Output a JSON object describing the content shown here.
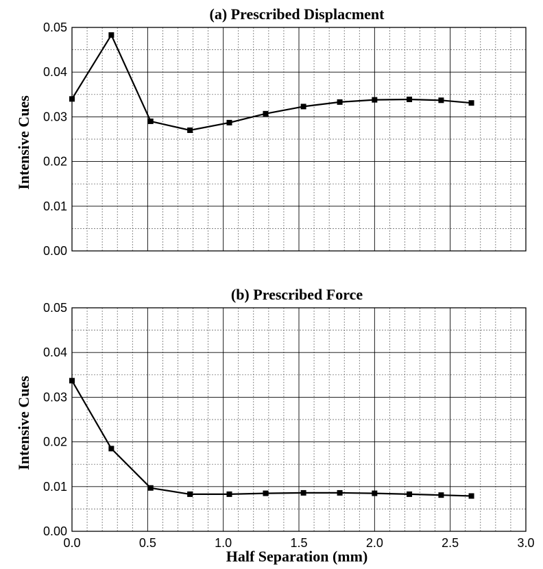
{
  "chart_data": [
    {
      "type": "line",
      "title": "(a) Prescribed Displacment",
      "ylabel": "Intensive Cues",
      "xlabel": "",
      "xlim": [
        0,
        3.0
      ],
      "ylim": [
        0,
        0.05
      ],
      "xticks": [
        "0.0",
        "0.5",
        "1.0",
        "1.5",
        "2.0",
        "2.5",
        "3.0"
      ],
      "yticks": [
        "0.00",
        "0.01",
        "0.02",
        "0.03",
        "0.04",
        "0.05"
      ],
      "show_xtick_labels": false,
      "grid": true,
      "series": [
        {
          "x": [
            0.0,
            0.26,
            0.52,
            0.78,
            1.04,
            1.28,
            1.53,
            1.77,
            2.0,
            2.23,
            2.44,
            2.64
          ],
          "y": [
            0.034,
            0.0483,
            0.029,
            0.027,
            0.0287,
            0.0307,
            0.0323,
            0.0333,
            0.0338,
            0.0339,
            0.0337,
            0.0331
          ]
        }
      ]
    },
    {
      "type": "line",
      "title": "(b) Prescribed Force",
      "ylabel": "Intensive Cues",
      "xlabel": "Half Separation (mm)",
      "xlim": [
        0,
        3.0
      ],
      "ylim": [
        0,
        0.05
      ],
      "xticks": [
        "0.0",
        "0.5",
        "1.0",
        "1.5",
        "2.0",
        "2.5",
        "3.0"
      ],
      "yticks": [
        "0.00",
        "0.01",
        "0.02",
        "0.03",
        "0.04",
        "0.05"
      ],
      "show_xtick_labels": true,
      "grid": true,
      "series": [
        {
          "x": [
            0.0,
            0.26,
            0.52,
            0.78,
            1.04,
            1.28,
            1.53,
            1.77,
            2.0,
            2.23,
            2.44,
            2.64
          ],
          "y": [
            0.0337,
            0.0185,
            0.0097,
            0.0083,
            0.0083,
            0.0085,
            0.0086,
            0.0086,
            0.0085,
            0.0083,
            0.0081,
            0.0079
          ]
        }
      ]
    }
  ]
}
